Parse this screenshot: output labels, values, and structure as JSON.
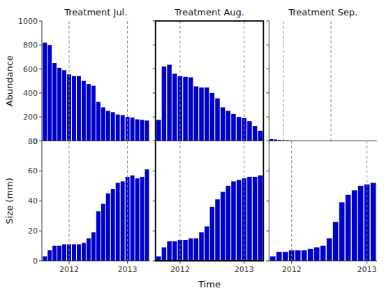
{
  "chart_data": [
    {
      "type": "bar",
      "title": "Treatment Jul.",
      "y_label": "Abundance",
      "categories": [
        null,
        null,
        null,
        null,
        null,
        "2012",
        null,
        null,
        null,
        null,
        null,
        null,
        null,
        null,
        null,
        null,
        null,
        "2013",
        null,
        null,
        null,
        null
      ],
      "values": [
        820,
        800,
        650,
        610,
        590,
        555,
        540,
        540,
        500,
        475,
        460,
        325,
        280,
        250,
        240,
        220,
        215,
        200,
        195,
        180,
        175,
        170
      ],
      "color": "#0000CC",
      "ylim": [
        0,
        1000
      ],
      "yticks": [
        0,
        200,
        400,
        600,
        800,
        1000
      ],
      "tick_labels": "y"
    },
    {
      "type": "bar",
      "title": "Treatment Aug.",
      "categories": [
        null,
        null,
        null,
        null,
        "2012",
        null,
        null,
        null,
        null,
        null,
        null,
        null,
        null,
        null,
        null,
        null,
        "2013",
        null,
        null,
        null
      ],
      "values": [
        175,
        620,
        635,
        560,
        540,
        535,
        530,
        455,
        445,
        445,
        400,
        355,
        280,
        250,
        225,
        200,
        190,
        165,
        125,
        85
      ],
      "color": "#0000CC",
      "ylim": [
        0,
        1000
      ],
      "yticks": [
        0,
        200,
        400,
        600,
        800,
        1000
      ],
      "tick_labels": false
    },
    {
      "type": "bar",
      "title": "Treatment Sep.",
      "categories": [
        null,
        null,
        null,
        "2012",
        null,
        null,
        null,
        null,
        null,
        null,
        null,
        null,
        null,
        null,
        null,
        "2013",
        null,
        null,
        null,
        null,
        null,
        null,
        null,
        null,
        null,
        null,
        null
      ],
      "values": [
        15,
        12,
        8,
        5,
        5,
        4,
        3,
        3,
        3,
        2,
        2,
        2,
        2,
        2,
        2,
        2,
        2,
        2,
        2,
        2,
        2,
        2,
        2,
        2,
        2,
        2,
        2
      ],
      "color": "#0000CC",
      "ylim": [
        0,
        1000
      ],
      "yticks": [
        0,
        200,
        400,
        600,
        800,
        1000
      ],
      "tick_labels": false
    },
    {
      "type": "bar",
      "y_label": "Size (mm)",
      "categories": [
        null,
        null,
        null,
        null,
        null,
        "2012",
        null,
        null,
        null,
        null,
        null,
        null,
        null,
        null,
        null,
        null,
        null,
        "2013",
        null,
        null,
        null,
        null
      ],
      "values": [
        3,
        7,
        10,
        10,
        11,
        11,
        11,
        11,
        12,
        15,
        19,
        33,
        38,
        45,
        48,
        52,
        53,
        56,
        57,
        55,
        56,
        61
      ],
      "color": "#0000CC",
      "ylim": [
        0,
        80
      ],
      "yticks": [
        0,
        20,
        40,
        60,
        80
      ]
    },
    {
      "type": "bar",
      "x_label": "Time",
      "categories": [
        null,
        null,
        null,
        null,
        "2012",
        null,
        null,
        null,
        null,
        null,
        null,
        null,
        null,
        null,
        null,
        null,
        "2013",
        null,
        null,
        null
      ],
      "values": [
        3,
        9,
        13,
        13,
        14,
        14,
        15,
        15,
        19,
        23,
        36,
        41,
        46,
        50,
        53,
        54,
        55,
        56,
        56,
        57
      ],
      "color": "#0000CC",
      "ylim": [
        0,
        80
      ],
      "yticks": [
        0,
        20,
        40,
        60,
        80
      ],
      "tick_labels": "x"
    },
    {
      "type": "bar",
      "categories": [
        null,
        null,
        null,
        "2012",
        null,
        null,
        null,
        null,
        null,
        null,
        null,
        null,
        null,
        null,
        null,
        "2013",
        null
      ],
      "values": [
        3,
        6,
        6,
        7,
        7,
        7,
        8,
        9,
        10,
        15,
        26,
        39,
        44,
        47,
        50,
        51,
        52
      ],
      "color": "#0000CC",
      "ylim": [
        0,
        80
      ],
      "yticks": [
        0,
        20,
        40,
        60,
        80
      ],
      "tick_labels": "x"
    }
  ]
}
